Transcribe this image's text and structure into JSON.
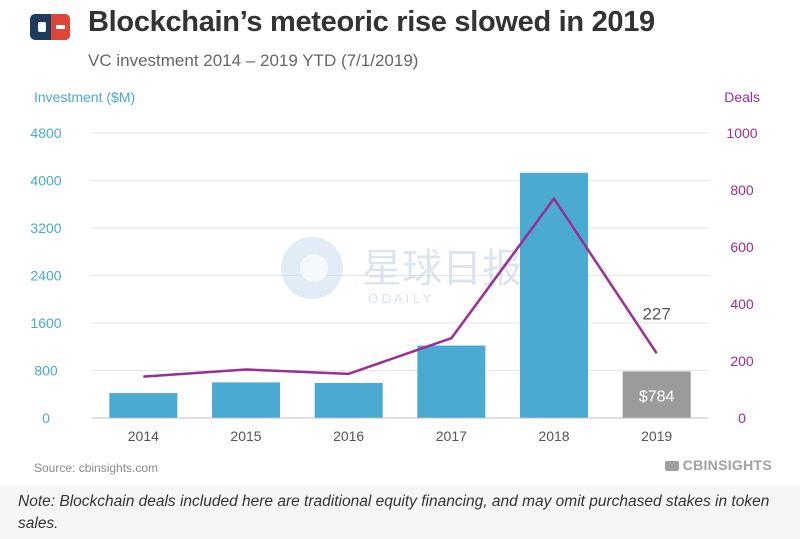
{
  "header": {
    "title": "Blockchain’s meteoric rise slowed in 2019",
    "subtitle": "VC investment 2014 – 2019 YTD (7/1/2019)"
  },
  "chart_data": {
    "type": "bar",
    "categories": [
      "2014",
      "2015",
      "2016",
      "2017",
      "2018",
      "2019"
    ],
    "series": [
      {
        "name": "Investment ($M)",
        "type": "bar",
        "axis": "left",
        "color": "#4aaad2",
        "values": [
          420,
          600,
          590,
          1220,
          4130,
          784
        ],
        "highlight_index": 5,
        "highlight_color": "#9b9b9b"
      },
      {
        "name": "Deals",
        "type": "line",
        "axis": "right",
        "color": "#9b2d94",
        "values": [
          145,
          170,
          155,
          280,
          770,
          227
        ]
      }
    ],
    "ylabel": "Investment ($M)",
    "ylabel_right": "Deals",
    "ylim": [
      0,
      4800
    ],
    "ylim_right": [
      0,
      1000
    ],
    "yticks": [
      "4800",
      "4000",
      "3200",
      "2400",
      "1600",
      "800",
      "0"
    ],
    "yticks_right": [
      "1000",
      "800",
      "600",
      "400",
      "200",
      "0"
    ],
    "annotations": {
      "bar_label_2019": "$784",
      "deal_label_2019": "227"
    },
    "grid": true
  },
  "watermark": {
    "cn": "星球日报",
    "en": "O D A I L Y"
  },
  "footer": {
    "source": "Source: cbinsights.com",
    "brand": "CBINSIGHTS",
    "note": "Note: Blockchain deals included here are traditional equity financing, and may omit purchased stakes in token sales."
  },
  "colors": {
    "bar": "#4aaad2",
    "bar_highlight": "#9b9b9b",
    "line": "#9b2d94",
    "left_axis": "#4aaad2",
    "right_axis": "#9b2d94",
    "logo_blue": "#1f3b5c",
    "logo_red": "#e0453a"
  }
}
